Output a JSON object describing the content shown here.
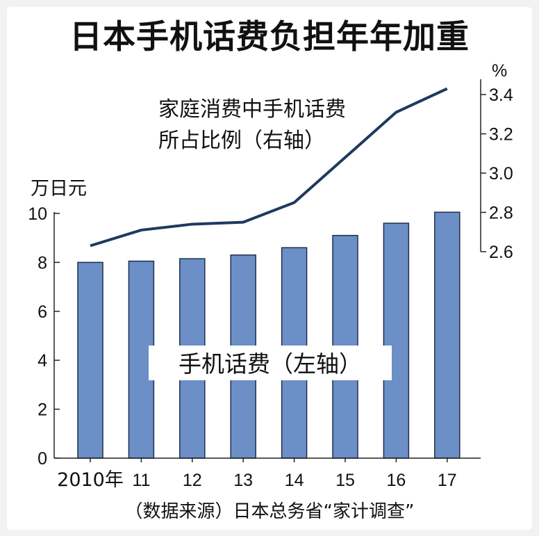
{
  "title": "日本手机话费负担年年加重",
  "left_axis_unit": "万日元",
  "right_axis_unit": "%",
  "line_label_lines": [
    "家庭消费中手机话费",
    "所占比例（右轴）"
  ],
  "bar_label": "手机话费（左轴）",
  "source": "（数据来源）日本总务省“家计调查”",
  "colors": {
    "bar": "#6b8fc6",
    "bar_stroke": "#1f2f4f",
    "line": "#1e3a5f"
  },
  "chart_data": {
    "type": "bar+line",
    "categories": [
      "2010年",
      "11",
      "12",
      "13",
      "14",
      "15",
      "16",
      "17"
    ],
    "series": [
      {
        "name": "手机话费（左轴）",
        "axis": "left",
        "type": "bar",
        "values": [
          8.0,
          8.05,
          8.15,
          8.3,
          8.6,
          9.1,
          9.6,
          10.05
        ]
      },
      {
        "name": "家庭消费中手机话费所占比例（右轴）",
        "axis": "right",
        "type": "line",
        "values": [
          2.63,
          2.71,
          2.74,
          2.75,
          2.85,
          3.08,
          3.31,
          3.43
        ]
      }
    ],
    "left_axis": {
      "ticks": [
        "0",
        "2",
        "4",
        "6",
        "8",
        "10"
      ],
      "ylim": [
        0,
        10
      ]
    },
    "right_axis": {
      "ticks": [
        "2.6",
        "2.8",
        "3.0",
        "3.2",
        "3.4"
      ],
      "ylim": [
        2.6,
        3.4
      ]
    }
  }
}
